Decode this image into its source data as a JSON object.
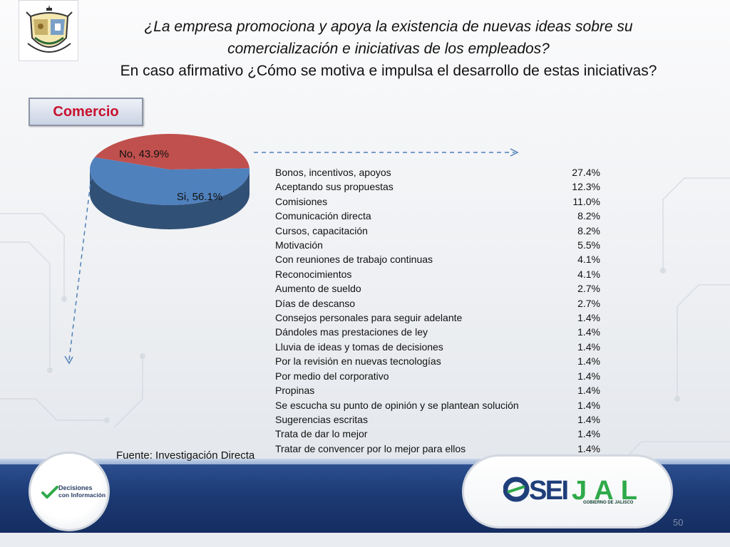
{
  "title": {
    "line1": "¿La empresa promociona y apoya la existencia de nuevas ideas sobre su",
    "line2": "comercialización e iniciativas de los empleados?",
    "line3": "En caso afirmativo ¿Cómo se motiva e impulsa el desarrollo de estas iniciativas?"
  },
  "sector_label": "Comercio",
  "chart_data": [
    {
      "type": "pie",
      "categories": [
        "No",
        "Si"
      ],
      "values": [
        43.9,
        56.1
      ],
      "labels": [
        "No, 43.9%",
        "Si, 56.1%"
      ],
      "colors": [
        "#c0504d",
        "#4f81bd"
      ],
      "style": "3d"
    },
    {
      "type": "table",
      "rows": [
        {
          "label": "Bonos, incentivos, apoyos",
          "value": "27.4%"
        },
        {
          "label": "Aceptando sus propuestas",
          "value": "12.3%"
        },
        {
          "label": "Comisiones",
          "value": "11.0%"
        },
        {
          "label": "Comunicación directa",
          "value": "8.2%"
        },
        {
          "label": "Cursos, capacitación",
          "value": "8.2%"
        },
        {
          "label": "Motivación",
          "value": "5.5%"
        },
        {
          "label": "Con reuniones de trabajo continuas",
          "value": "4.1%"
        },
        {
          "label": "Reconocimientos",
          "value": "4.1%"
        },
        {
          "label": "Aumento de sueldo",
          "value": "2.7%"
        },
        {
          "label": "Días de descanso",
          "value": "2.7%"
        },
        {
          "label": "Consejos personales para seguir adelante",
          "value": "1.4%"
        },
        {
          "label": "Dándoles mas prestaciones de ley",
          "value": "1.4%"
        },
        {
          "label": "Lluvia de ideas y tomas de decisiones",
          "value": "1.4%"
        },
        {
          "label": "Por la revisión en nuevas tecnologías",
          "value": "1.4%"
        },
        {
          "label": "Por medio del corporativo",
          "value": "1.4%"
        },
        {
          "label": "Propinas",
          "value": "1.4%"
        },
        {
          "label": "Se escucha  su punto de opinión y se plantean solución",
          "value": "1.4%"
        },
        {
          "label": "Sugerencias escritas",
          "value": "1.4%"
        },
        {
          "label": "Trata de dar lo mejor",
          "value": "1.4%"
        },
        {
          "label": "Tratar de convencer por lo mejor para ellos",
          "value": "1.4%"
        }
      ]
    }
  ],
  "source": "Fuente: Investigación Directa",
  "footer": {
    "decisiones_line1": "Decisiones",
    "decisiones_line2": "con Información",
    "seijal_logo": "OSEIJAL",
    "seijal_sub": "GOBIERNO DE JALISCO",
    "page_number": "50"
  },
  "icons": {
    "top_logo": "coat-of-arms-icon",
    "decisiones_logo": "checkmark-arrow-icon"
  }
}
